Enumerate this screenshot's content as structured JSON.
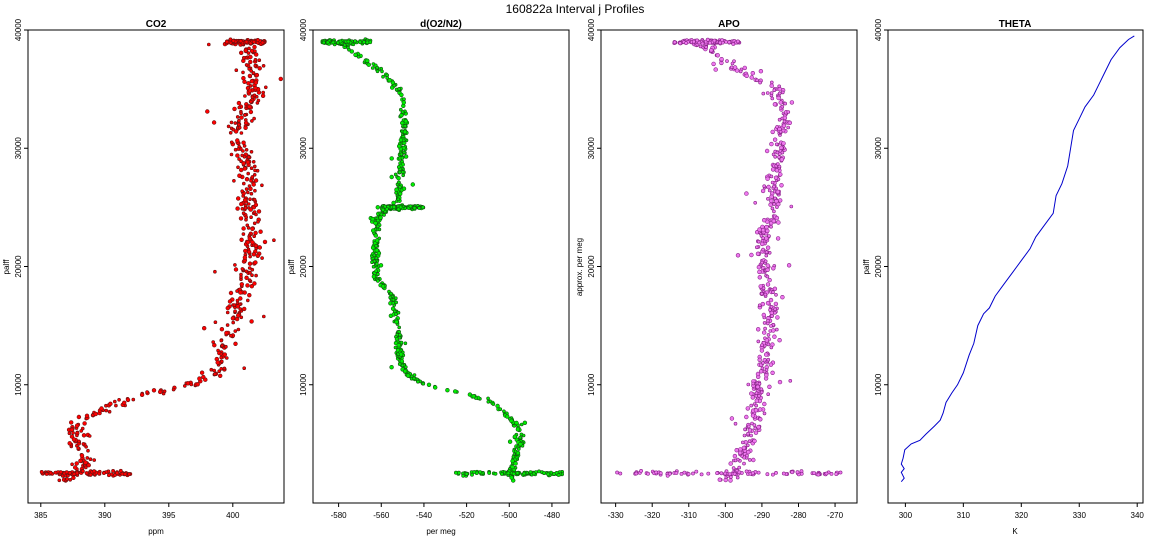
{
  "page": {
    "title": "160822a   Interval j Profiles"
  },
  "chart_data": [
    {
      "type": "scatter",
      "title": "CO2",
      "xlabel": "ppm",
      "ylabel": "palff",
      "xlim": [
        384,
        404
      ],
      "ylim": [
        0,
        40000
      ],
      "xticks": [
        385,
        390,
        395,
        400
      ],
      "yticks": [
        10000,
        20000,
        30000,
        40000
      ],
      "fill_color": "#ff0000",
      "edge_color": "#661111",
      "profile": [
        [
          387.0,
          1900
        ],
        [
          388.0,
          2500
        ],
        [
          388.5,
          3500
        ],
        [
          388.0,
          5000
        ],
        [
          388.0,
          6500
        ],
        [
          388.5,
          7300
        ],
        [
          389.5,
          7700
        ],
        [
          391.0,
          8500
        ],
        [
          393.0,
          9200
        ],
        [
          395.0,
          9600
        ],
        [
          397.0,
          10000
        ],
        [
          398.5,
          11000
        ],
        [
          399.0,
          12500
        ],
        [
          399.5,
          14000
        ],
        [
          400.0,
          15500
        ],
        [
          400.5,
          17000
        ],
        [
          401.0,
          19000
        ],
        [
          401.5,
          21000
        ],
        [
          401.5,
          23000
        ],
        [
          401.0,
          25000
        ],
        [
          401.3,
          27000
        ],
        [
          401.0,
          29000
        ],
        [
          400.0,
          31000
        ],
        [
          401.0,
          33000
        ],
        [
          401.5,
          35000
        ],
        [
          401.5,
          37000
        ],
        [
          401.0,
          39000
        ]
      ],
      "spread": 1.2,
      "bursts": [
        {
          "y": 2500,
          "x0": 385.0,
          "x1": 392.0
        },
        {
          "y": 39000,
          "x0": 399.5,
          "x1": 402.5
        }
      ]
    },
    {
      "type": "scatter",
      "title": "d(O2/N2)",
      "xlabel": "per meg",
      "ylabel": "palff",
      "xlim": [
        -592,
        -472
      ],
      "ylim": [
        0,
        40000
      ],
      "xticks": [
        -580,
        -560,
        -540,
        -520,
        -500,
        -480
      ],
      "yticks": [
        10000,
        20000,
        30000,
        40000
      ],
      "fill_color": "#00ee00",
      "edge_color": "#115511",
      "profile": [
        [
          -498,
          1900
        ],
        [
          -500,
          2500
        ],
        [
          -498,
          3500
        ],
        [
          -495,
          5000
        ],
        [
          -496,
          6500
        ],
        [
          -500,
          7300
        ],
        [
          -508,
          8500
        ],
        [
          -520,
          9200
        ],
        [
          -535,
          9800
        ],
        [
          -545,
          10500
        ],
        [
          -550,
          11500
        ],
        [
          -552,
          13000
        ],
        [
          -552,
          14500
        ],
        [
          -553,
          16000
        ],
        [
          -555,
          17500
        ],
        [
          -562,
          19000
        ],
        [
          -563,
          21000
        ],
        [
          -563,
          23000
        ],
        [
          -560,
          24500
        ],
        [
          -552,
          25500
        ],
        [
          -552,
          27000
        ],
        [
          -550,
          29500
        ],
        [
          -550,
          31000
        ],
        [
          -549,
          33000
        ],
        [
          -552,
          35000
        ],
        [
          -560,
          36500
        ],
        [
          -572,
          38000
        ],
        [
          -580,
          39000
        ]
      ],
      "spread": 2.5,
      "bursts": [
        {
          "y": 2500,
          "x0": -525,
          "x1": -475
        },
        {
          "y": 39000,
          "x0": -588,
          "x1": -565
        },
        {
          "y": 25000,
          "x0": -560,
          "x1": -540
        }
      ]
    },
    {
      "type": "scatter",
      "title": "APO",
      "xlabel": "",
      "ylabel": "approx. per meg",
      "xlim": [
        -334,
        -264
      ],
      "ylim": [
        0,
        40000
      ],
      "xticks": [
        -330,
        -320,
        -310,
        -300,
        -290,
        -280,
        -270
      ],
      "yticks": [
        10000,
        20000,
        30000,
        40000
      ],
      "fill_color": "#ee77ee",
      "edge_color": "#882288",
      "profile": [
        [
          -300,
          1900
        ],
        [
          -298,
          2500
        ],
        [
          -296,
          3500
        ],
        [
          -294,
          5000
        ],
        [
          -292,
          6500
        ],
        [
          -292,
          8000
        ],
        [
          -291,
          9500
        ],
        [
          -290,
          11000
        ],
        [
          -289,
          13000
        ],
        [
          -288,
          15000
        ],
        [
          -288,
          17000
        ],
        [
          -289,
          19000
        ],
        [
          -289,
          21000
        ],
        [
          -289,
          23000
        ],
        [
          -286,
          25000
        ],
        [
          -287,
          27000
        ],
        [
          -285,
          29500
        ],
        [
          -285,
          31000
        ],
        [
          -284,
          33000
        ],
        [
          -286,
          35000
        ],
        [
          -298,
          37000
        ],
        [
          -305,
          38500
        ],
        [
          -310,
          39000
        ]
      ],
      "spread": 3.5,
      "bursts": [
        {
          "y": 2500,
          "x0": -330,
          "x1": -268
        },
        {
          "y": 39000,
          "x0": -314,
          "x1": -296
        }
      ]
    },
    {
      "type": "line",
      "title": "THETA",
      "xlabel": "K",
      "ylabel": "palff",
      "xlim": [
        297,
        341
      ],
      "ylim": [
        0,
        40000
      ],
      "xticks": [
        300,
        310,
        320,
        330,
        340
      ],
      "yticks": [
        10000,
        20000,
        30000,
        40000
      ],
      "line_color": "#0000cc",
      "points": [
        [
          299.3,
          1800
        ],
        [
          299.8,
          2100
        ],
        [
          299.3,
          2600
        ],
        [
          299.8,
          2900
        ],
        [
          299.3,
          3300
        ],
        [
          299.6,
          3800
        ],
        [
          299.9,
          4500
        ],
        [
          301.0,
          5000
        ],
        [
          302.5,
          5300
        ],
        [
          303.5,
          5800
        ],
        [
          305.0,
          6500
        ],
        [
          306.0,
          7000
        ],
        [
          306.5,
          7600
        ],
        [
          307.0,
          8500
        ],
        [
          308.0,
          9300
        ],
        [
          309.0,
          10000
        ],
        [
          310.0,
          11000
        ],
        [
          311.0,
          12500
        ],
        [
          311.8,
          13500
        ],
        [
          312.5,
          15000
        ],
        [
          313.5,
          16000
        ],
        [
          314.5,
          16500
        ],
        [
          315.5,
          17500
        ],
        [
          317.0,
          18500
        ],
        [
          318.5,
          19500
        ],
        [
          320.0,
          20500
        ],
        [
          321.5,
          21500
        ],
        [
          322.5,
          22500
        ],
        [
          324.0,
          23500
        ],
        [
          325.5,
          24500
        ],
        [
          326.0,
          26000
        ],
        [
          327.0,
          27000
        ],
        [
          328.0,
          28500
        ],
        [
          328.5,
          30000
        ],
        [
          329.0,
          31500
        ],
        [
          330.0,
          32500
        ],
        [
          331.0,
          33500
        ],
        [
          332.5,
          34500
        ],
        [
          333.5,
          35500
        ],
        [
          334.5,
          36500
        ],
        [
          335.5,
          37500
        ],
        [
          337.0,
          38500
        ],
        [
          338.5,
          39200
        ],
        [
          339.5,
          39500
        ]
      ]
    }
  ]
}
